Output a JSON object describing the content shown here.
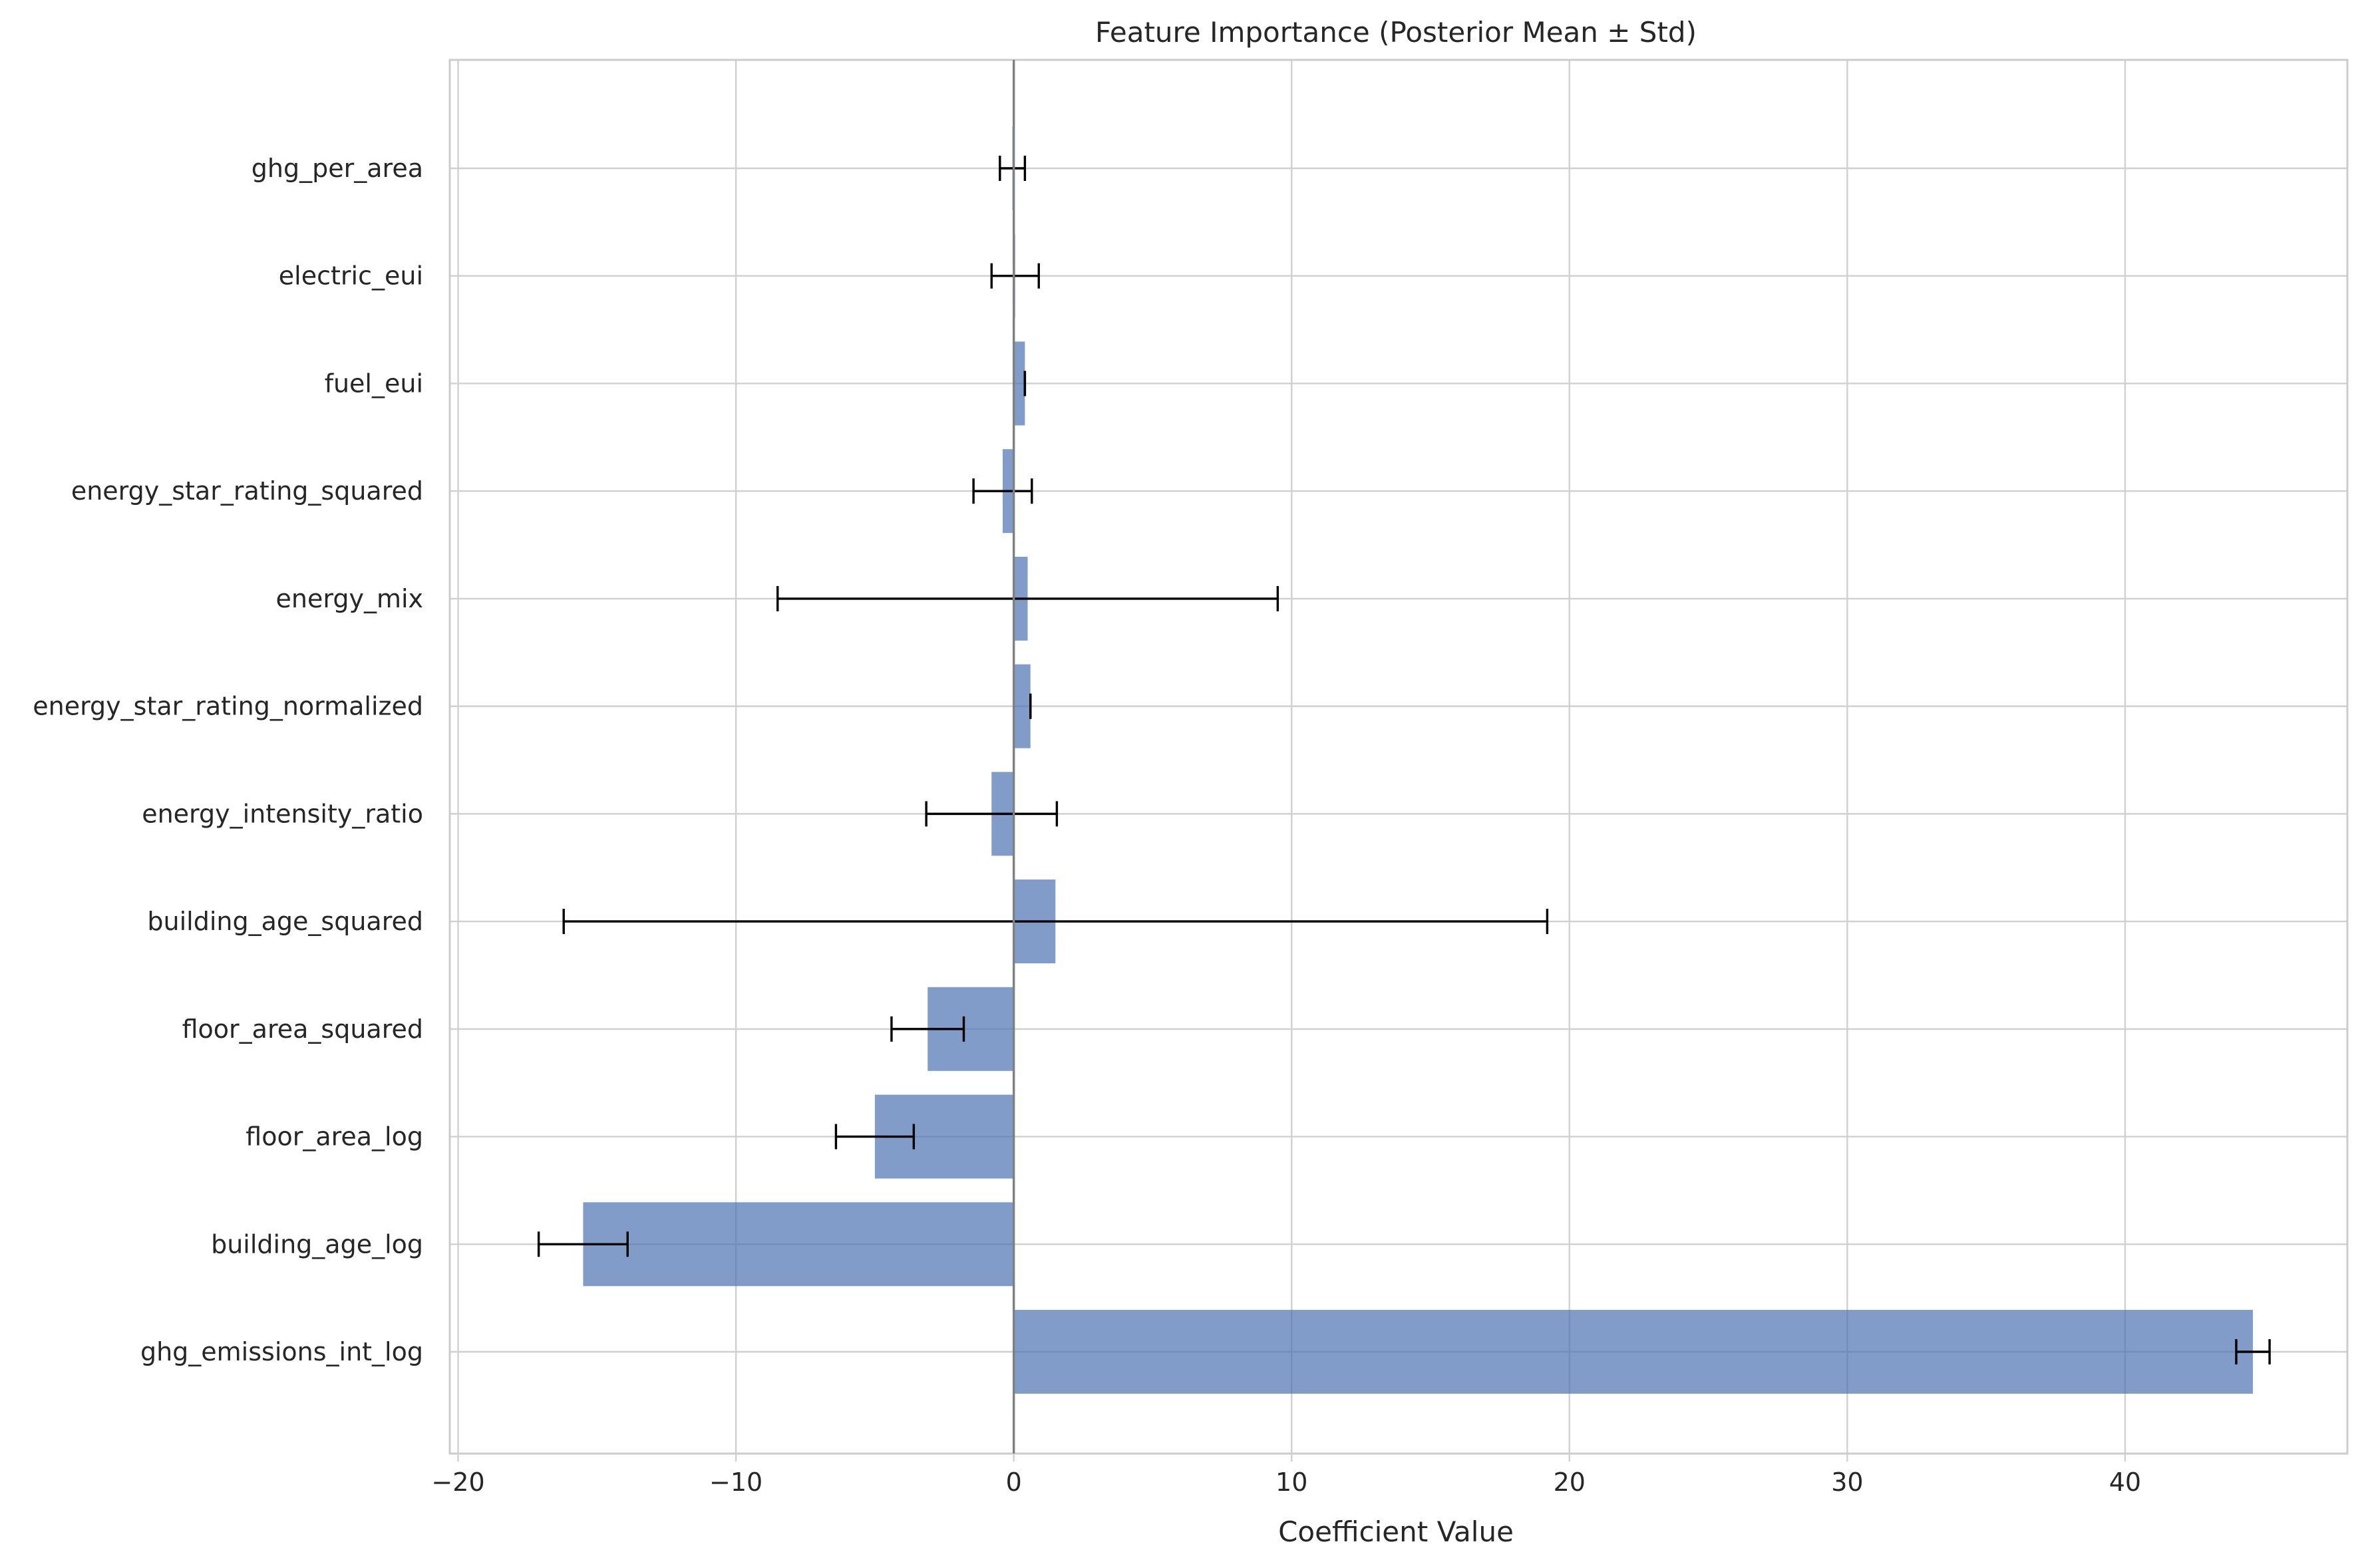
{
  "chart_data": {
    "type": "bar",
    "orientation": "horizontal",
    "title": "Feature Importance (Posterior Mean ± Std)",
    "xlabel": "Coefficient Value",
    "ylabel": "",
    "xlim": [
      -20.3,
      48
    ],
    "xticks": [
      -20,
      -10,
      0,
      10,
      20,
      30,
      40
    ],
    "xtick_labels": [
      "−20",
      "−10",
      "0",
      "10",
      "20",
      "30",
      "40"
    ],
    "grid": true,
    "bar_color": "#4c72b0",
    "error_bar_color": "#000000",
    "zero_line_color": "#808080",
    "categories": [
      "ghg_per_area",
      "electric_eui",
      "fuel_eui",
      "energy_star_rating_squared",
      "energy_mix",
      "energy_star_rating_normalized",
      "energy_intensity_ratio",
      "building_age_squared",
      "floor_area_squared",
      "floor_area_log",
      "building_age_log",
      "ghg_emissions_int_log"
    ],
    "values": [
      -0.05,
      0.05,
      0.4,
      -0.4,
      0.5,
      0.6,
      -0.8,
      1.5,
      -3.1,
      -5.0,
      -15.5,
      44.6
    ],
    "errors": [
      0.45,
      0.85,
      0.0,
      1.05,
      9.0,
      0.0,
      2.35,
      17.7,
      1.3,
      1.4,
      1.6,
      0.6
    ]
  }
}
